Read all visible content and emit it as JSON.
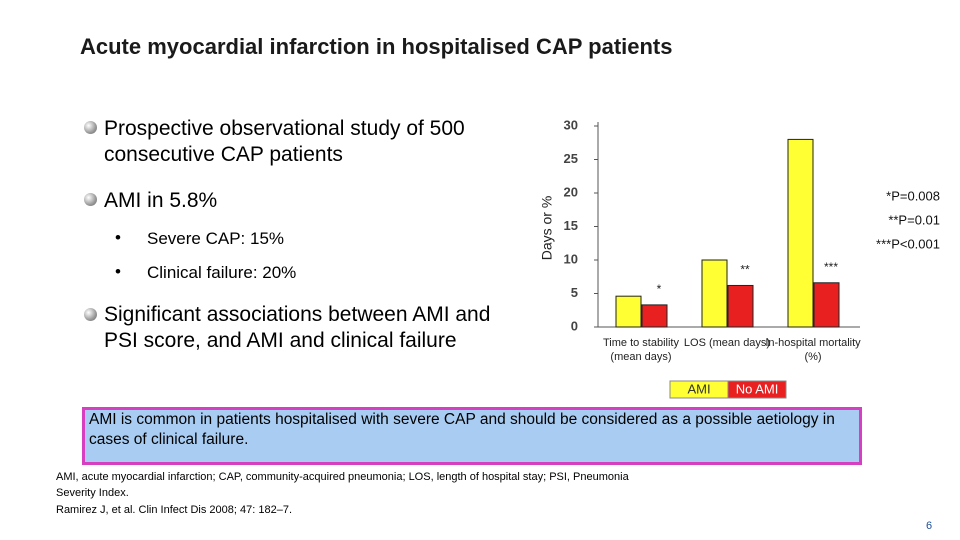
{
  "slide": {
    "title": "Acute myocardial infarction in hospitalised CAP patients",
    "bullets": [
      {
        "text": "Prospective observational study of 500 consecutive CAP patients"
      },
      {
        "text": "AMI in 5.8%",
        "sub": [
          "Severe CAP: 15%",
          "Clinical failure: 20%"
        ]
      },
      {
        "text": "Significant associations between AMI and PSI score, and AMI and clinical failure"
      }
    ],
    "conclusion": "AMI is common in patients hospitalised with severe CAP and should be considered as a possible aetiology in cases of clinical failure.",
    "footnotes": [
      "AMI, acute myocardial infarction; CAP, community-acquired pneumonia; LOS, length of hospital stay; PSI, Pneumonia Severity Index.",
      "Ramirez J, et al. Clin Infect Dis 2008; 47: 182–7."
    ],
    "page_number": "6"
  },
  "chart_data": {
    "type": "bar",
    "y_label": "Days or %",
    "categories": [
      "Time to stability (mean days)",
      "LOS (mean days)",
      "In-hospital mortality (%)"
    ],
    "series": [
      {
        "name": "AMI",
        "color": "#ffff33",
        "values": [
          4.6,
          10,
          28
        ]
      },
      {
        "name": "No AMI",
        "color": "#e82020",
        "values": [
          3.3,
          6.2,
          6.6
        ]
      }
    ],
    "annotations": [
      "*",
      "**",
      "***"
    ],
    "notes": [
      "*P=0.008",
      "**P=0.01",
      "***P<0.001"
    ],
    "ylim": [
      0,
      30
    ],
    "yticks": [
      0,
      5,
      10,
      15,
      20,
      25,
      30
    ],
    "legend": "bottom"
  }
}
